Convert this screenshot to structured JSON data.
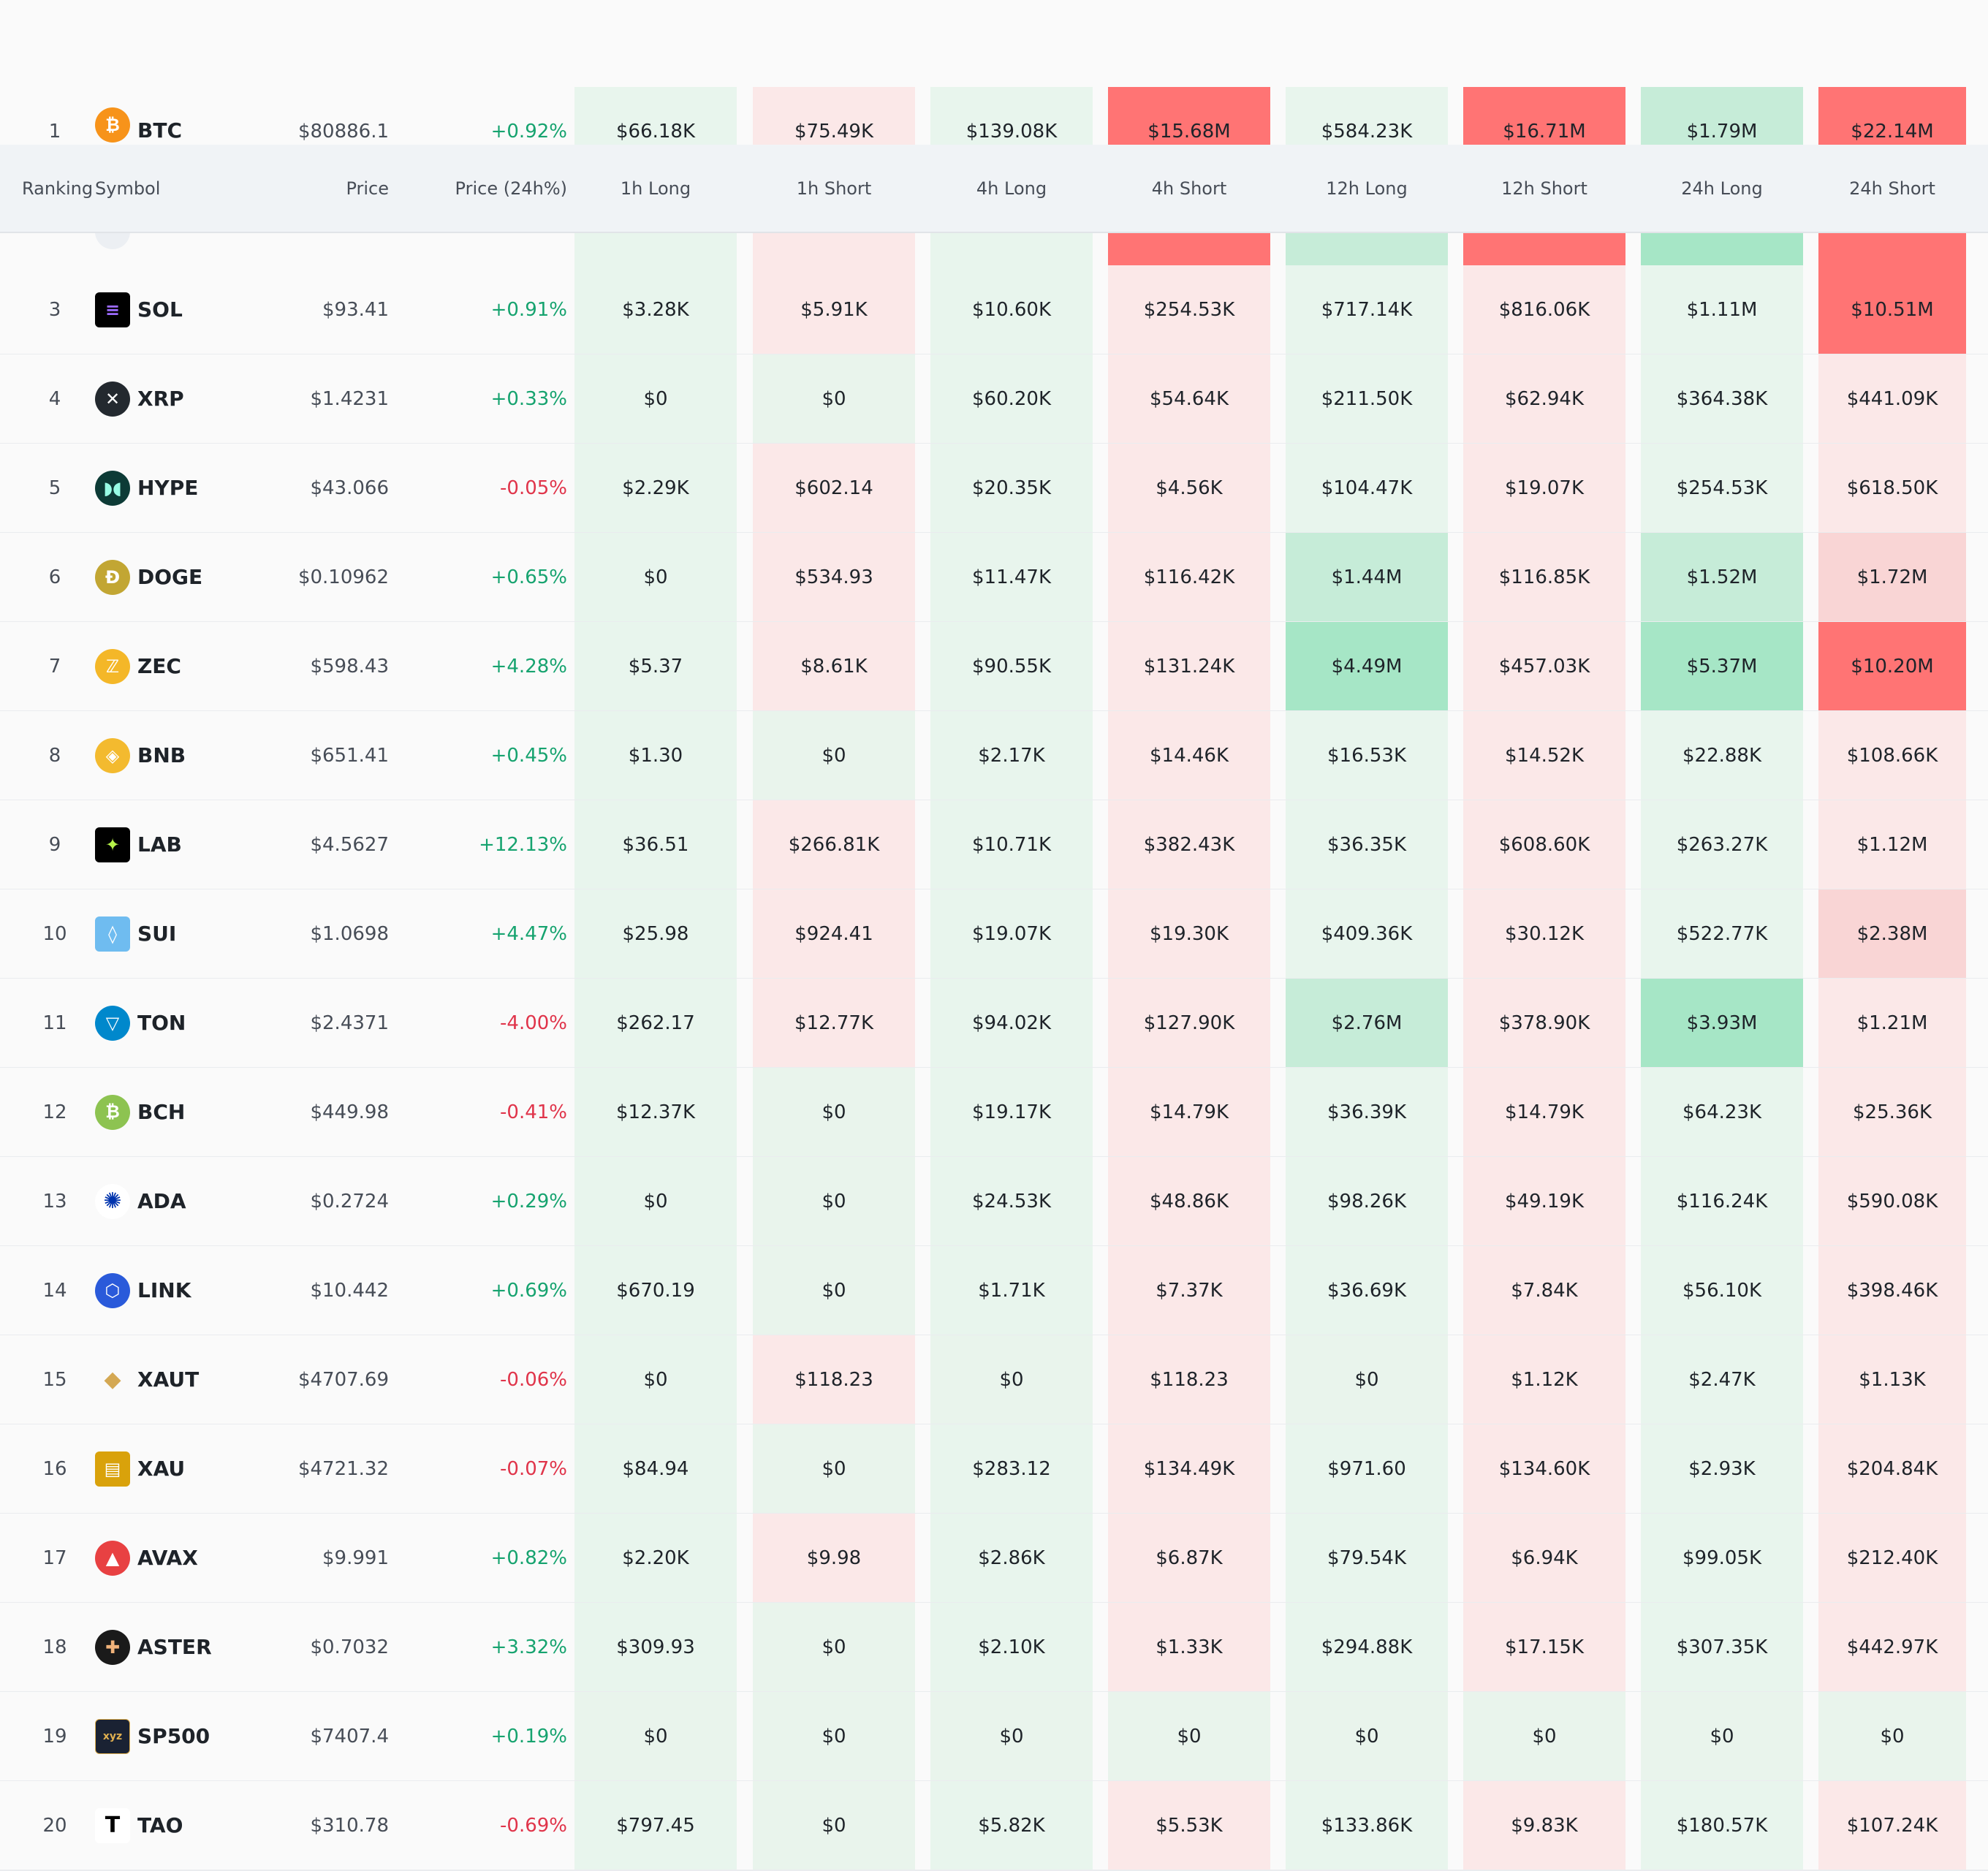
{
  "header": {
    "ranking": "Ranking",
    "symbol": "Symbol",
    "price": "Price",
    "price_change": "Price (24h%)",
    "h1_long": "1h Long",
    "h1_short": "1h Short",
    "h4_long": "4h Long",
    "h4_short": "4h Short",
    "h12_long": "12h Long",
    "h12_short": "12h Short",
    "h24_long": "24h Long",
    "h24_short": "24h Short"
  },
  "colors": {
    "long_light": "#e8f5ed",
    "long_medium": "#c6ecd8",
    "long_strong": "#a6e6c6",
    "short_light": "#fbe8e8",
    "short_medium": "#f9d5d5",
    "short_strong": "#ff7474",
    "neutral_light": "#e9f4ec",
    "positive_text": "#16a36f",
    "negative_text": "#e0344a"
  },
  "rows": [
    {
      "rank": "1",
      "symbol": "BTC",
      "icon": "bitcoin-icon",
      "price": "$80886.1",
      "change": "+0.92%",
      "dir": "pos",
      "values": [
        "$66.18K",
        "$75.49K",
        "$139.08K",
        "$15.68M",
        "$584.23K",
        "$16.71M",
        "$1.79M",
        "$22.14M"
      ],
      "tones": [
        "long_light",
        "short_light",
        "long_light",
        "short_strong",
        "long_light",
        "short_strong",
        "long_medium",
        "short_strong"
      ]
    },
    {
      "rank": "",
      "symbol": "",
      "icon": "ethereum-icon",
      "price": "",
      "change": "",
      "dir": "pos",
      "values": [
        "",
        "",
        "",
        "",
        "",
        "",
        "",
        ""
      ],
      "tones": [
        "long_light",
        "short_light",
        "long_light",
        "short_strong",
        "long_medium",
        "short_strong",
        "long_strong",
        "short_strong"
      ]
    },
    {
      "rank": "3",
      "symbol": "SOL",
      "icon": "solana-icon",
      "price": "$93.41",
      "change": "+0.91%",
      "dir": "pos",
      "values": [
        "$3.28K",
        "$5.91K",
        "$10.60K",
        "$254.53K",
        "$717.14K",
        "$816.06K",
        "$1.11M",
        "$10.51M"
      ],
      "tones": [
        "long_light",
        "short_light",
        "long_light",
        "short_light",
        "long_light",
        "short_light",
        "long_light",
        "short_strong"
      ]
    },
    {
      "rank": "4",
      "symbol": "XRP",
      "icon": "xrp-icon",
      "price": "$1.4231",
      "change": "+0.33%",
      "dir": "pos",
      "values": [
        "$0",
        "$0",
        "$60.20K",
        "$54.64K",
        "$211.50K",
        "$62.94K",
        "$364.38K",
        "$441.09K"
      ],
      "tones": [
        "long_light",
        "neutral_light",
        "long_light",
        "short_light",
        "long_light",
        "short_light",
        "long_light",
        "short_light"
      ]
    },
    {
      "rank": "5",
      "symbol": "HYPE",
      "icon": "hyperliquid-icon",
      "price": "$43.066",
      "change": "-0.05%",
      "dir": "neg",
      "values": [
        "$2.29K",
        "$602.14",
        "$20.35K",
        "$4.56K",
        "$104.47K",
        "$19.07K",
        "$254.53K",
        "$618.50K"
      ],
      "tones": [
        "long_light",
        "short_light",
        "long_light",
        "short_light",
        "long_light",
        "short_light",
        "long_light",
        "short_light"
      ]
    },
    {
      "rank": "6",
      "symbol": "DOGE",
      "icon": "dogecoin-icon",
      "price": "$0.10962",
      "change": "+0.65%",
      "dir": "pos",
      "values": [
        "$0",
        "$534.93",
        "$11.47K",
        "$116.42K",
        "$1.44M",
        "$116.85K",
        "$1.52M",
        "$1.72M"
      ],
      "tones": [
        "long_light",
        "short_light",
        "long_light",
        "short_light",
        "long_medium",
        "short_light",
        "long_medium",
        "short_medium"
      ]
    },
    {
      "rank": "7",
      "symbol": "ZEC",
      "icon": "zcash-icon",
      "price": "$598.43",
      "change": "+4.28%",
      "dir": "pos",
      "values": [
        "$5.37",
        "$8.61K",
        "$90.55K",
        "$131.24K",
        "$4.49M",
        "$457.03K",
        "$5.37M",
        "$10.20M"
      ],
      "tones": [
        "long_light",
        "short_light",
        "long_light",
        "short_light",
        "long_strong",
        "short_light",
        "long_strong",
        "short_strong"
      ]
    },
    {
      "rank": "8",
      "symbol": "BNB",
      "icon": "bnb-icon",
      "price": "$651.41",
      "change": "+0.45%",
      "dir": "pos",
      "values": [
        "$1.30",
        "$0",
        "$2.17K",
        "$14.46K",
        "$16.53K",
        "$14.52K",
        "$22.88K",
        "$108.66K"
      ],
      "tones": [
        "long_light",
        "neutral_light",
        "long_light",
        "short_light",
        "long_light",
        "short_light",
        "long_light",
        "short_light"
      ]
    },
    {
      "rank": "9",
      "symbol": "LAB",
      "icon": "lab-icon",
      "price": "$4.5627",
      "change": "+12.13%",
      "dir": "pos",
      "values": [
        "$36.51",
        "$266.81K",
        "$10.71K",
        "$382.43K",
        "$36.35K",
        "$608.60K",
        "$263.27K",
        "$1.12M"
      ],
      "tones": [
        "long_light",
        "short_light",
        "long_light",
        "short_light",
        "long_light",
        "short_light",
        "long_light",
        "short_light"
      ]
    },
    {
      "rank": "10",
      "symbol": "SUI",
      "icon": "sui-icon",
      "price": "$1.0698",
      "change": "+4.47%",
      "dir": "pos",
      "values": [
        "$25.98",
        "$924.41",
        "$19.07K",
        "$19.30K",
        "$409.36K",
        "$30.12K",
        "$522.77K",
        "$2.38M"
      ],
      "tones": [
        "long_light",
        "short_light",
        "long_light",
        "short_light",
        "long_light",
        "short_light",
        "long_light",
        "short_medium"
      ]
    },
    {
      "rank": "11",
      "symbol": "TON",
      "icon": "toncoin-icon",
      "price": "$2.4371",
      "change": "-4.00%",
      "dir": "neg",
      "values": [
        "$262.17",
        "$12.77K",
        "$94.02K",
        "$127.90K",
        "$2.76M",
        "$378.90K",
        "$3.93M",
        "$1.21M"
      ],
      "tones": [
        "long_light",
        "short_light",
        "long_light",
        "short_light",
        "long_medium",
        "short_light",
        "long_strong",
        "short_light"
      ]
    },
    {
      "rank": "12",
      "symbol": "BCH",
      "icon": "bitcoin-cash-icon",
      "price": "$449.98",
      "change": "-0.41%",
      "dir": "neg",
      "values": [
        "$12.37K",
        "$0",
        "$19.17K",
        "$14.79K",
        "$36.39K",
        "$14.79K",
        "$64.23K",
        "$25.36K"
      ],
      "tones": [
        "long_light",
        "neutral_light",
        "long_light",
        "short_light",
        "long_light",
        "short_light",
        "long_light",
        "short_light"
      ]
    },
    {
      "rank": "13",
      "symbol": "ADA",
      "icon": "cardano-icon",
      "price": "$0.2724",
      "change": "+0.29%",
      "dir": "pos",
      "values": [
        "$0",
        "$0",
        "$24.53K",
        "$48.86K",
        "$98.26K",
        "$49.19K",
        "$116.24K",
        "$590.08K"
      ],
      "tones": [
        "long_light",
        "neutral_light",
        "long_light",
        "short_light",
        "long_light",
        "short_light",
        "long_light",
        "short_light"
      ]
    },
    {
      "rank": "14",
      "symbol": "LINK",
      "icon": "chainlink-icon",
      "price": "$10.442",
      "change": "+0.69%",
      "dir": "pos",
      "values": [
        "$670.19",
        "$0",
        "$1.71K",
        "$7.37K",
        "$36.69K",
        "$7.84K",
        "$56.10K",
        "$398.46K"
      ],
      "tones": [
        "long_light",
        "neutral_light",
        "long_light",
        "short_light",
        "long_light",
        "short_light",
        "long_light",
        "short_light"
      ]
    },
    {
      "rank": "15",
      "symbol": "XAUT",
      "icon": "tether-gold-icon",
      "price": "$4707.69",
      "change": "-0.06%",
      "dir": "neg",
      "values": [
        "$0",
        "$118.23",
        "$0",
        "$118.23",
        "$0",
        "$1.12K",
        "$2.47K",
        "$1.13K"
      ],
      "tones": [
        "long_light",
        "short_light",
        "neutral_light",
        "short_light",
        "neutral_light",
        "short_light",
        "long_light",
        "short_light"
      ]
    },
    {
      "rank": "16",
      "symbol": "XAU",
      "icon": "gold-bars-icon",
      "price": "$4721.32",
      "change": "-0.07%",
      "dir": "neg",
      "values": [
        "$84.94",
        "$0",
        "$283.12",
        "$134.49K",
        "$971.60",
        "$134.60K",
        "$2.93K",
        "$204.84K"
      ],
      "tones": [
        "long_light",
        "neutral_light",
        "long_light",
        "short_light",
        "long_light",
        "short_light",
        "long_light",
        "short_light"
      ]
    },
    {
      "rank": "17",
      "symbol": "AVAX",
      "icon": "avalanche-icon",
      "price": "$9.991",
      "change": "+0.82%",
      "dir": "pos",
      "values": [
        "$2.20K",
        "$9.98",
        "$2.86K",
        "$6.87K",
        "$79.54K",
        "$6.94K",
        "$99.05K",
        "$212.40K"
      ],
      "tones": [
        "long_light",
        "short_light",
        "long_light",
        "short_light",
        "long_light",
        "short_light",
        "long_light",
        "short_light"
      ]
    },
    {
      "rank": "18",
      "symbol": "ASTER",
      "icon": "aster-icon",
      "price": "$0.7032",
      "change": "+3.32%",
      "dir": "pos",
      "values": [
        "$309.93",
        "$0",
        "$2.10K",
        "$1.33K",
        "$294.88K",
        "$17.15K",
        "$307.35K",
        "$442.97K"
      ],
      "tones": [
        "long_light",
        "neutral_light",
        "long_light",
        "short_light",
        "long_light",
        "short_light",
        "long_light",
        "short_light"
      ]
    },
    {
      "rank": "19",
      "symbol": "SP500",
      "icon": "sp500-xyz-icon",
      "price": "$7407.4",
      "change": "+0.19%",
      "dir": "pos",
      "values": [
        "$0",
        "$0",
        "$0",
        "$0",
        "$0",
        "$0",
        "$0",
        "$0"
      ],
      "tones": [
        "neutral_light",
        "neutral_light",
        "neutral_light",
        "neutral_light",
        "neutral_light",
        "neutral_light",
        "neutral_light",
        "neutral_light"
      ]
    },
    {
      "rank": "20",
      "symbol": "TAO",
      "icon": "bittensor-icon",
      "price": "$310.78",
      "change": "-0.69%",
      "dir": "neg",
      "values": [
        "$797.45",
        "$0",
        "$5.82K",
        "$5.53K",
        "$133.86K",
        "$9.83K",
        "$180.57K",
        "$107.24K"
      ],
      "tones": [
        "long_light",
        "neutral_light",
        "long_light",
        "short_light",
        "long_light",
        "short_light",
        "long_light",
        "short_light"
      ]
    }
  ]
}
